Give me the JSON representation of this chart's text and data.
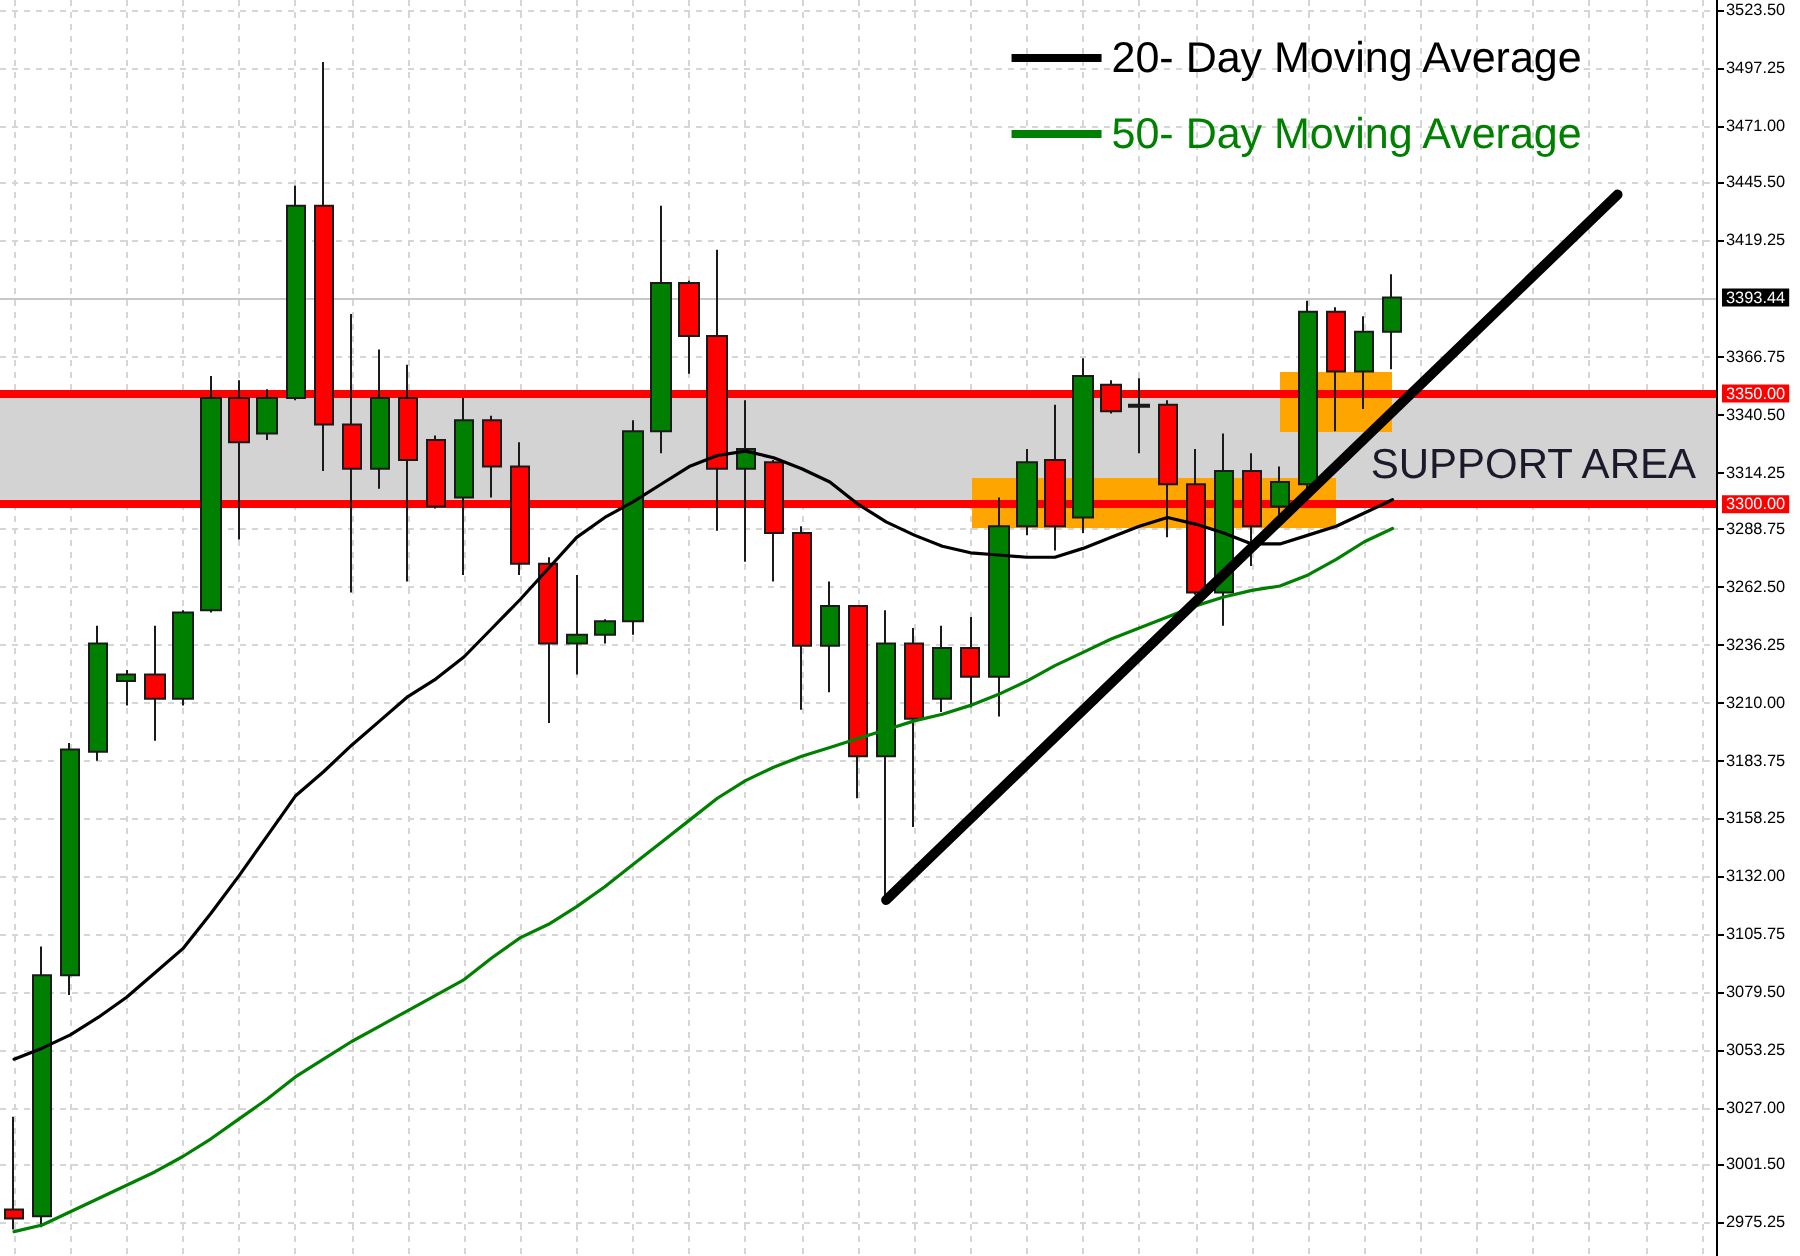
{
  "chart_data": {
    "type": "candlestick",
    "categories": [
      null,
      null,
      null,
      null,
      null,
      null,
      null,
      null,
      null,
      null,
      null,
      null,
      null,
      null,
      null,
      null,
      null,
      null,
      null,
      null,
      null,
      null,
      null,
      null,
      null,
      null,
      null,
      null,
      null,
      null,
      null,
      null,
      null,
      null,
      null,
      null,
      null,
      null,
      null,
      null,
      null,
      null,
      null,
      null,
      null,
      null,
      null,
      null,
      null,
      null,
      null,
      null,
      null,
      null,
      null,
      null,
      null,
      null,
      null,
      null,
      null
    ],
    "series": [
      {
        "ohlc": [
          [
            2981,
            3023,
            2972,
            2977
          ],
          [
            2978,
            3100,
            2973,
            3087
          ],
          [
            3087,
            3192,
            3078,
            3189
          ],
          [
            3188,
            3245,
            3184,
            3237
          ],
          [
            3220,
            3225,
            3209,
            3223
          ],
          [
            3223,
            3245,
            3193,
            3212
          ],
          [
            3212,
            3252,
            3209,
            3251
          ],
          [
            3252,
            3358,
            3251,
            3348
          ],
          [
            3348,
            3356,
            3284,
            3328
          ],
          [
            3332,
            3352,
            3329,
            3348
          ],
          [
            3348,
            3444,
            3347,
            3435
          ],
          [
            3435,
            3500,
            3315,
            3336
          ],
          [
            3336,
            3386,
            3260,
            3316
          ],
          [
            3316,
            3370,
            3307,
            3348
          ],
          [
            3348,
            3363,
            3265,
            3320
          ],
          [
            3329,
            3331,
            3298,
            3299
          ],
          [
            3303,
            3348,
            3268,
            3338
          ],
          [
            3338,
            3340,
            3303,
            3317
          ],
          [
            3317,
            3328,
            3268,
            3273
          ],
          [
            3273,
            3276,
            3201,
            3237
          ],
          [
            3237,
            3268,
            3223,
            3241
          ],
          [
            3241,
            3248,
            3237,
            3247
          ],
          [
            3247,
            3338,
            3241,
            3333
          ],
          [
            3333,
            3435,
            3323,
            3400
          ],
          [
            3400,
            3401,
            3359,
            3376
          ],
          [
            3376,
            3415,
            3288,
            3316
          ],
          [
            3316,
            3347,
            3274,
            3325
          ],
          [
            3319,
            3320,
            3265,
            3287
          ],
          [
            3287,
            3290,
            3207,
            3236
          ],
          [
            3236,
            3265,
            3215,
            3254
          ],
          [
            3254,
            3254,
            3167,
            3186
          ],
          [
            3186,
            3252,
            3120,
            3237
          ],
          [
            3237,
            3244,
            3154,
            3203
          ],
          [
            3212,
            3245,
            3206,
            3235
          ],
          [
            3235,
            3249,
            3208,
            3222
          ],
          [
            3222,
            3303,
            3204,
            3290
          ],
          [
            3290,
            3325,
            3286,
            3319
          ],
          [
            3320,
            3345,
            3279,
            3290
          ],
          [
            3294,
            3366,
            3287,
            3358
          ],
          [
            3354,
            3356,
            3341,
            3342
          ],
          [
            3345,
            3357,
            3323,
            3344
          ],
          [
            3345,
            3347,
            3285,
            3309
          ],
          [
            3309,
            3325,
            3259,
            3260
          ],
          [
            3260,
            3332,
            3245,
            3315
          ],
          [
            3315,
            3323,
            3272,
            3290
          ],
          [
            3299,
            3317,
            3295,
            3310
          ],
          [
            3309,
            3392,
            3306,
            3387
          ],
          [
            3387,
            3389,
            3333,
            3360
          ],
          [
            3360,
            3385,
            3343,
            3378
          ],
          [
            3378,
            3404,
            3361,
            3393.44
          ],
          null,
          null,
          null,
          null,
          null,
          null,
          null,
          null,
          null,
          null,
          null
        ],
        "colors": [
          "#ff0000",
          "#008000",
          "#008000",
          "#008000",
          "#008000",
          "#ff0000",
          "#008000",
          "#008000",
          "#ff0000",
          "#008000",
          "#008000",
          "#ff0000",
          "#ff0000",
          "#008000",
          "#ff0000",
          "#ff0000",
          "#008000",
          "#ff0000",
          "#ff0000",
          "#ff0000",
          "#008000",
          "#008000",
          "#008000",
          "#008000",
          "#ff0000",
          "#ff0000",
          "#008000",
          "#ff0000",
          "#ff0000",
          "#008000",
          "#ff0000",
          "#008000",
          "#ff0000",
          "#008000",
          "#ff0000",
          "#008000",
          "#008000",
          "#ff0000",
          "#008000",
          "#ff0000",
          "#ff0000",
          "#ff0000",
          "#ff0000",
          "#008000",
          "#ff0000",
          "#008000",
          "#008000",
          "#ff0000",
          "#008000",
          "#008000",
          null,
          null,
          null,
          null,
          null,
          null,
          null,
          null,
          null,
          null,
          null
        ]
      },
      {
        "type": "line",
        "name": "20- Day Moving Average",
        "color": "#000000",
        "values": [
          3049,
          3054,
          3060,
          3068,
          3077,
          3088,
          3099,
          3115,
          3132,
          3150,
          3168,
          3179,
          3191,
          3202,
          3213,
          3221,
          3231,
          3244,
          3257,
          3271,
          3285,
          3294,
          3301,
          3309,
          3317,
          3322,
          3324,
          3321,
          3316,
          3310,
          3300,
          3292,
          3286,
          3281,
          3278,
          3277,
          3276,
          3276,
          3280,
          3285,
          3290,
          3294,
          3291,
          3287,
          3282,
          3282,
          3286,
          3290,
          3296,
          3302,
          null,
          null,
          null,
          null,
          null,
          null,
          null,
          null,
          null,
          null,
          null
        ]
      },
      {
        "type": "line",
        "name": "50- Day Moving Average",
        "color": "#008000",
        "values": [
          2971,
          2974,
          2980,
          2986,
          2992,
          2998,
          3005,
          3013,
          3022,
          3031,
          3041,
          3049,
          3057,
          3064,
          3071,
          3078,
          3085,
          3095,
          3104,
          3110,
          3118,
          3127,
          3137,
          3147,
          3157,
          3167,
          3175,
          3181,
          3186,
          3190,
          3194,
          3198,
          3202,
          3205,
          3209,
          3214,
          3220,
          3227,
          3233,
          3239,
          3244,
          3249,
          3254,
          3258,
          3261,
          3263,
          3268,
          3275,
          3283,
          3289,
          null,
          null,
          null,
          null,
          null,
          null,
          null,
          null,
          null,
          null,
          null
        ]
      },
      {
        "type": "line",
        "color": "#000000",
        "values": [
          null,
          null,
          null,
          null,
          null,
          null,
          null,
          null,
          null,
          null,
          null,
          null,
          null,
          null,
          null,
          null,
          null,
          null,
          null,
          null,
          null,
          null,
          null,
          null,
          null,
          null,
          null,
          null,
          null,
          null,
          null,
          3121,
          null,
          null,
          null,
          null,
          null,
          null,
          null,
          null,
          null,
          null,
          null,
          null,
          null,
          null,
          null,
          null,
          null,
          null,
          null,
          null,
          null,
          null,
          null,
          null,
          null,
          3440,
          null,
          null,
          null
        ]
      }
    ],
    "ylim": [
      2960,
      3528
    ],
    "yticks": [
      2975.25,
      {
        "value": 3001.5,
        "label": "3001.50"
      },
      {
        "value": 3027,
        "label": "3027.00"
      },
      3053.25,
      {
        "value": 3079.5,
        "label": "3079.50"
      },
      3105.75,
      {
        "value": 3132,
        "label": "3132.00"
      },
      3158.25,
      3183.75,
      {
        "value": 3210,
        "label": "3210.00"
      },
      3236.25,
      {
        "value": 3262.5,
        "label": "3262.50"
      },
      3288.75,
      3314.25,
      {
        "value": 3340.5,
        "label": "3340.50"
      },
      3366.75,
      3419.25,
      {
        "value": 3445.5,
        "label": "3445.50"
      },
      {
        "value": 3471,
        "label": "3471.00"
      },
      3497.25,
      {
        "value": 3523.5,
        "label": "3523.50"
      }
    ],
    "tick_labels": "y",
    "grid": true,
    "legend": "top right",
    "ref_lines": [
      {
        "axis": "y",
        "value": 3350,
        "label": "3350.00",
        "color": "#ff0000"
      },
      {
        "axis": "y",
        "value": 3300,
        "label": "3300.00",
        "color": "#ff0000"
      },
      {
        "axis": "y",
        "value": 3393.44,
        "label": "3393.44",
        "color": "#c8c8c8"
      }
    ],
    "bands": [
      {
        "axis": "y",
        "from": 3300,
        "to": 3350,
        "label": "SUPPORT AREA",
        "color": "#d3d3d3"
      }
    ]
  }
}
